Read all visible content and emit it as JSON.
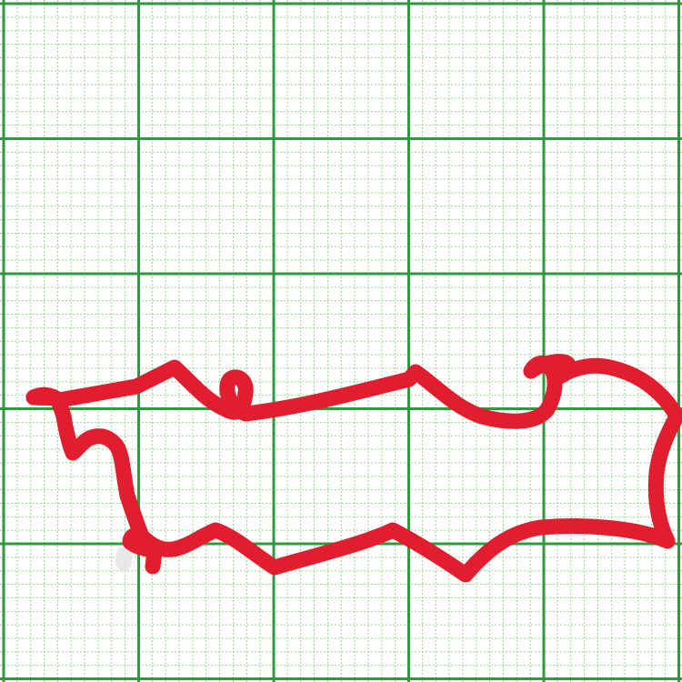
{
  "grid": {
    "major_divisions": 5,
    "minor_per_major": 10,
    "major_color": "#2e9a3e",
    "minor_color": "#9bd08f",
    "background": "#ffffff"
  },
  "shape": {
    "stroke_color": "#e01e2f",
    "smudge_color": "#e6e6e6"
  }
}
